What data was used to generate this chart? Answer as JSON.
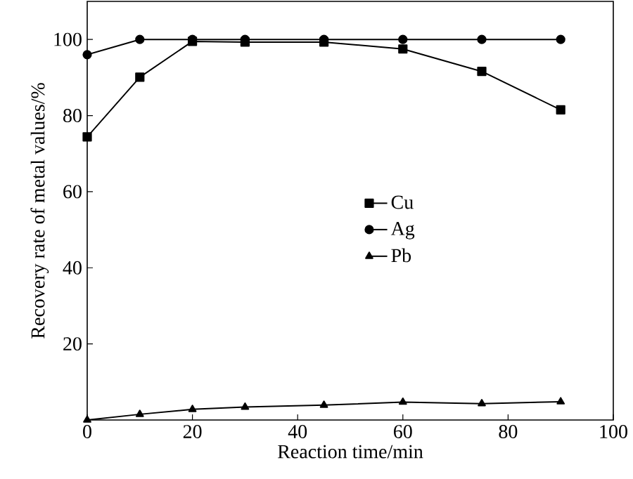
{
  "chart_data": {
    "type": "line",
    "xlabel": "Reaction time/min",
    "ylabel": "Recovery rate of metal values/%",
    "x": [
      0,
      10,
      20,
      30,
      45,
      60,
      75,
      90
    ],
    "series": [
      {
        "name": "Cu",
        "color": "#000000",
        "marker": "square",
        "values": [
          74.4,
          90.1,
          99.5,
          99.3,
          99.3,
          97.5,
          91.6,
          81.5
        ]
      },
      {
        "name": "Ag",
        "color": "#000000",
        "marker": "circle",
        "values": [
          96,
          100,
          100,
          100,
          100,
          100,
          100,
          100
        ]
      },
      {
        "name": "Pb",
        "color": "#000000",
        "marker": "triangle",
        "values": [
          0,
          1.5,
          2.8,
          3.4,
          3.9,
          4.7,
          4.3,
          4.8
        ]
      }
    ],
    "xlim": [
      0,
      100
    ],
    "ylim": [
      0,
      110
    ],
    "xticks": [
      0,
      20,
      40,
      60,
      80,
      100
    ],
    "yticks": [
      20,
      40,
      60,
      80,
      100
    ],
    "legend": "center",
    "grid": false,
    "line_style": "solid"
  }
}
